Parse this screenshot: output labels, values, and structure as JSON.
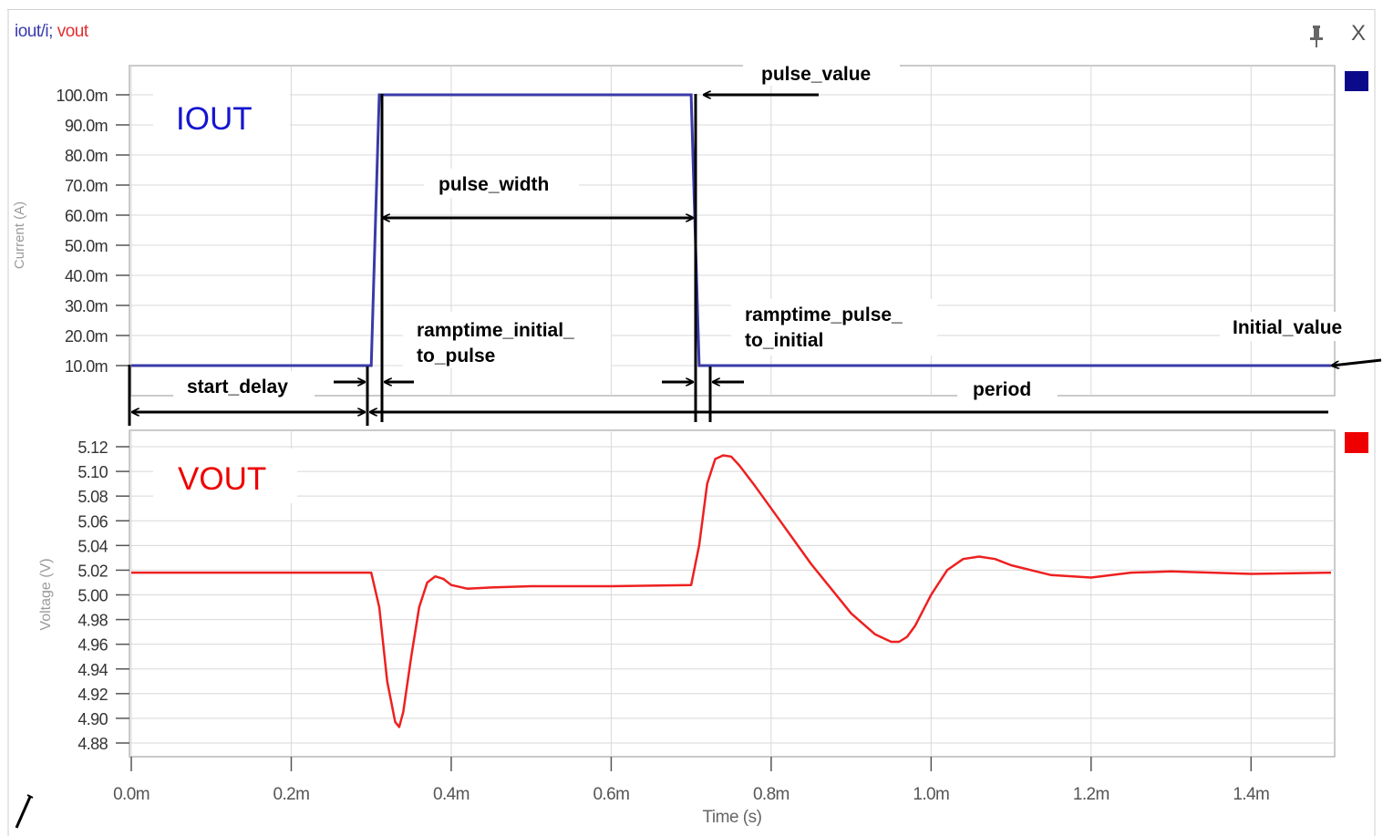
{
  "window": {
    "title_blue": "iout/i;",
    "title_red": " vout",
    "pin_icon": "pin-icon",
    "close_label": "X"
  },
  "colors": {
    "iout": "#3a3aa8",
    "vout": "#ee2020",
    "grid": "#d8d8d8",
    "annotation": "#000000"
  },
  "chart_data": [
    {
      "type": "line",
      "title": "IOUT",
      "ylabel": "Current (A)",
      "xlim": [
        0,
        0.0015
      ],
      "ylim": [
        10.0,
        100.0
      ],
      "yticks": [
        "10.0m",
        "20.0m",
        "30.0m",
        "40.0m",
        "50.0m",
        "60.0m",
        "70.0m",
        "80.0m",
        "90.0m",
        "100.0m"
      ],
      "series": [
        {
          "name": "IOUT",
          "x": [
            0.0,
            0.0003,
            0.00031,
            0.0007,
            0.00071,
            0.0015
          ],
          "values": [
            10.0,
            10.0,
            100.0,
            100.0,
            10.0,
            10.0
          ]
        }
      ],
      "legend_swatch": "#0a0a8a",
      "grid": true,
      "annotations": {
        "pulse_value": "pulse_value",
        "pulse_width": "pulse_width",
        "ramp_up_line1": "ramptime_initial_",
        "ramp_up_line2": "to_pulse",
        "ramp_down_line1": "ramptime_pulse_",
        "ramp_down_line2": "to_initial",
        "initial_value": "Initial_value",
        "start_delay": "start_delay",
        "period": "period"
      }
    },
    {
      "type": "line",
      "title": "VOUT",
      "ylabel": "Voltage (V)",
      "xlabel": "Time (s)",
      "xlim": [
        0,
        0.0015
      ],
      "ylim": [
        4.87,
        5.13
      ],
      "xticks": [
        "0.0m",
        "0.2m",
        "0.4m",
        "0.6m",
        "0.8m",
        "1.0m",
        "1.2m",
        "1.4m"
      ],
      "yticks": [
        "4.88",
        "4.90",
        "4.92",
        "4.94",
        "4.96",
        "4.98",
        "5.00",
        "5.02",
        "5.04",
        "5.06",
        "5.08",
        "5.10",
        "5.12"
      ],
      "series": [
        {
          "name": "VOUT",
          "x": [
            0.0,
            0.0003,
            0.00031,
            0.00032,
            0.00033,
            0.000335,
            0.00034,
            0.00035,
            0.00036,
            0.00037,
            0.00038,
            0.00039,
            0.0004,
            0.00042,
            0.00045,
            0.0005,
            0.0006,
            0.0007,
            0.00071,
            0.00072,
            0.00073,
            0.00074,
            0.00075,
            0.00076,
            0.00078,
            0.0008,
            0.00085,
            0.0009,
            0.00093,
            0.00095,
            0.00096,
            0.00097,
            0.00098,
            0.001,
            0.00102,
            0.00104,
            0.00106,
            0.00108,
            0.0011,
            0.00115,
            0.0012,
            0.00125,
            0.0013,
            0.00135,
            0.0014,
            0.0015
          ],
          "values": [
            5.018,
            5.018,
            4.99,
            4.93,
            4.897,
            4.893,
            4.905,
            4.95,
            4.99,
            5.01,
            5.015,
            5.013,
            5.008,
            5.005,
            5.006,
            5.007,
            5.007,
            5.008,
            5.04,
            5.09,
            5.11,
            5.113,
            5.112,
            5.105,
            5.088,
            5.07,
            5.025,
            4.985,
            4.968,
            4.962,
            4.962,
            4.966,
            4.975,
            5.0,
            5.02,
            5.029,
            5.031,
            5.029,
            5.024,
            5.016,
            5.014,
            5.018,
            5.019,
            5.018,
            5.017,
            5.018
          ]
        }
      ],
      "legend_swatch": "#ee0000",
      "grid": true
    }
  ]
}
